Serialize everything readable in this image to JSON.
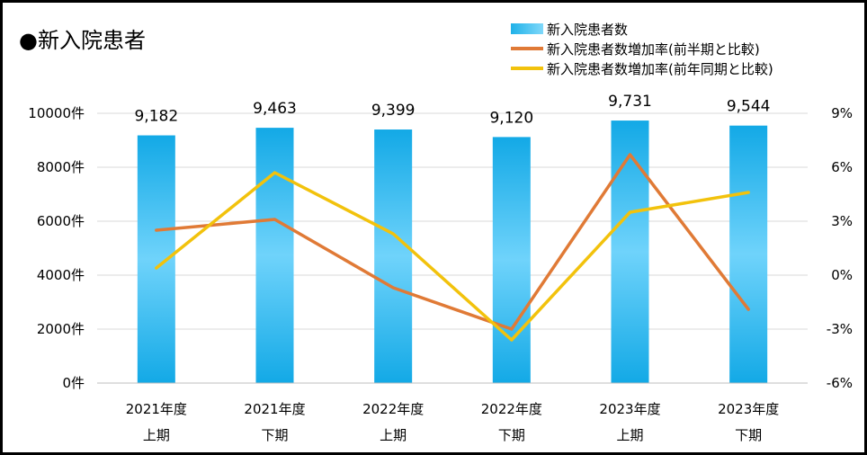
{
  "title": "●新入院患者",
  "chart_data": {
    "type": "bar+line",
    "categories": [
      [
        "2021年度",
        "上期"
      ],
      [
        "2021年度",
        "下期"
      ],
      [
        "2022年度",
        "上期"
      ],
      [
        "2022年度",
        "下期"
      ],
      [
        "2023年度",
        "上期"
      ],
      [
        "2023年度",
        "下期"
      ]
    ],
    "bars": {
      "name": "新入院患者数",
      "values": [
        9182,
        9463,
        9399,
        9120,
        9731,
        9544
      ],
      "labels": [
        "9,182",
        "9,463",
        "9,399",
        "9,120",
        "9,731",
        "9,544"
      ],
      "color": "#1fb1e8"
    },
    "lines": [
      {
        "name": "新入院患者数増加率(前半期と比較)",
        "values": [
          2.5,
          3.1,
          -0.7,
          -3.0,
          6.7,
          -1.9
        ],
        "color": "#e07a36"
      },
      {
        "name": "新入院患者数増加率(前年同期と比較)",
        "values": [
          0.4,
          5.7,
          2.3,
          -3.6,
          3.5,
          4.6
        ],
        "color": "#f2c20c"
      }
    ],
    "y_left": {
      "ylim": [
        0,
        10000
      ],
      "ticks": [
        0,
        2000,
        4000,
        6000,
        8000,
        10000
      ],
      "tick_labels": [
        "0件",
        "2000件",
        "4000件",
        "6000件",
        "8000件",
        "10000件"
      ]
    },
    "y_right": {
      "ylim": [
        -6,
        9
      ],
      "ticks": [
        -6,
        -3,
        0,
        3,
        6,
        9
      ],
      "tick_labels": [
        "-6%",
        "-3%",
        "0%",
        "3%",
        "6%",
        "9%"
      ]
    },
    "grid": true,
    "legend_position": "top-right"
  }
}
